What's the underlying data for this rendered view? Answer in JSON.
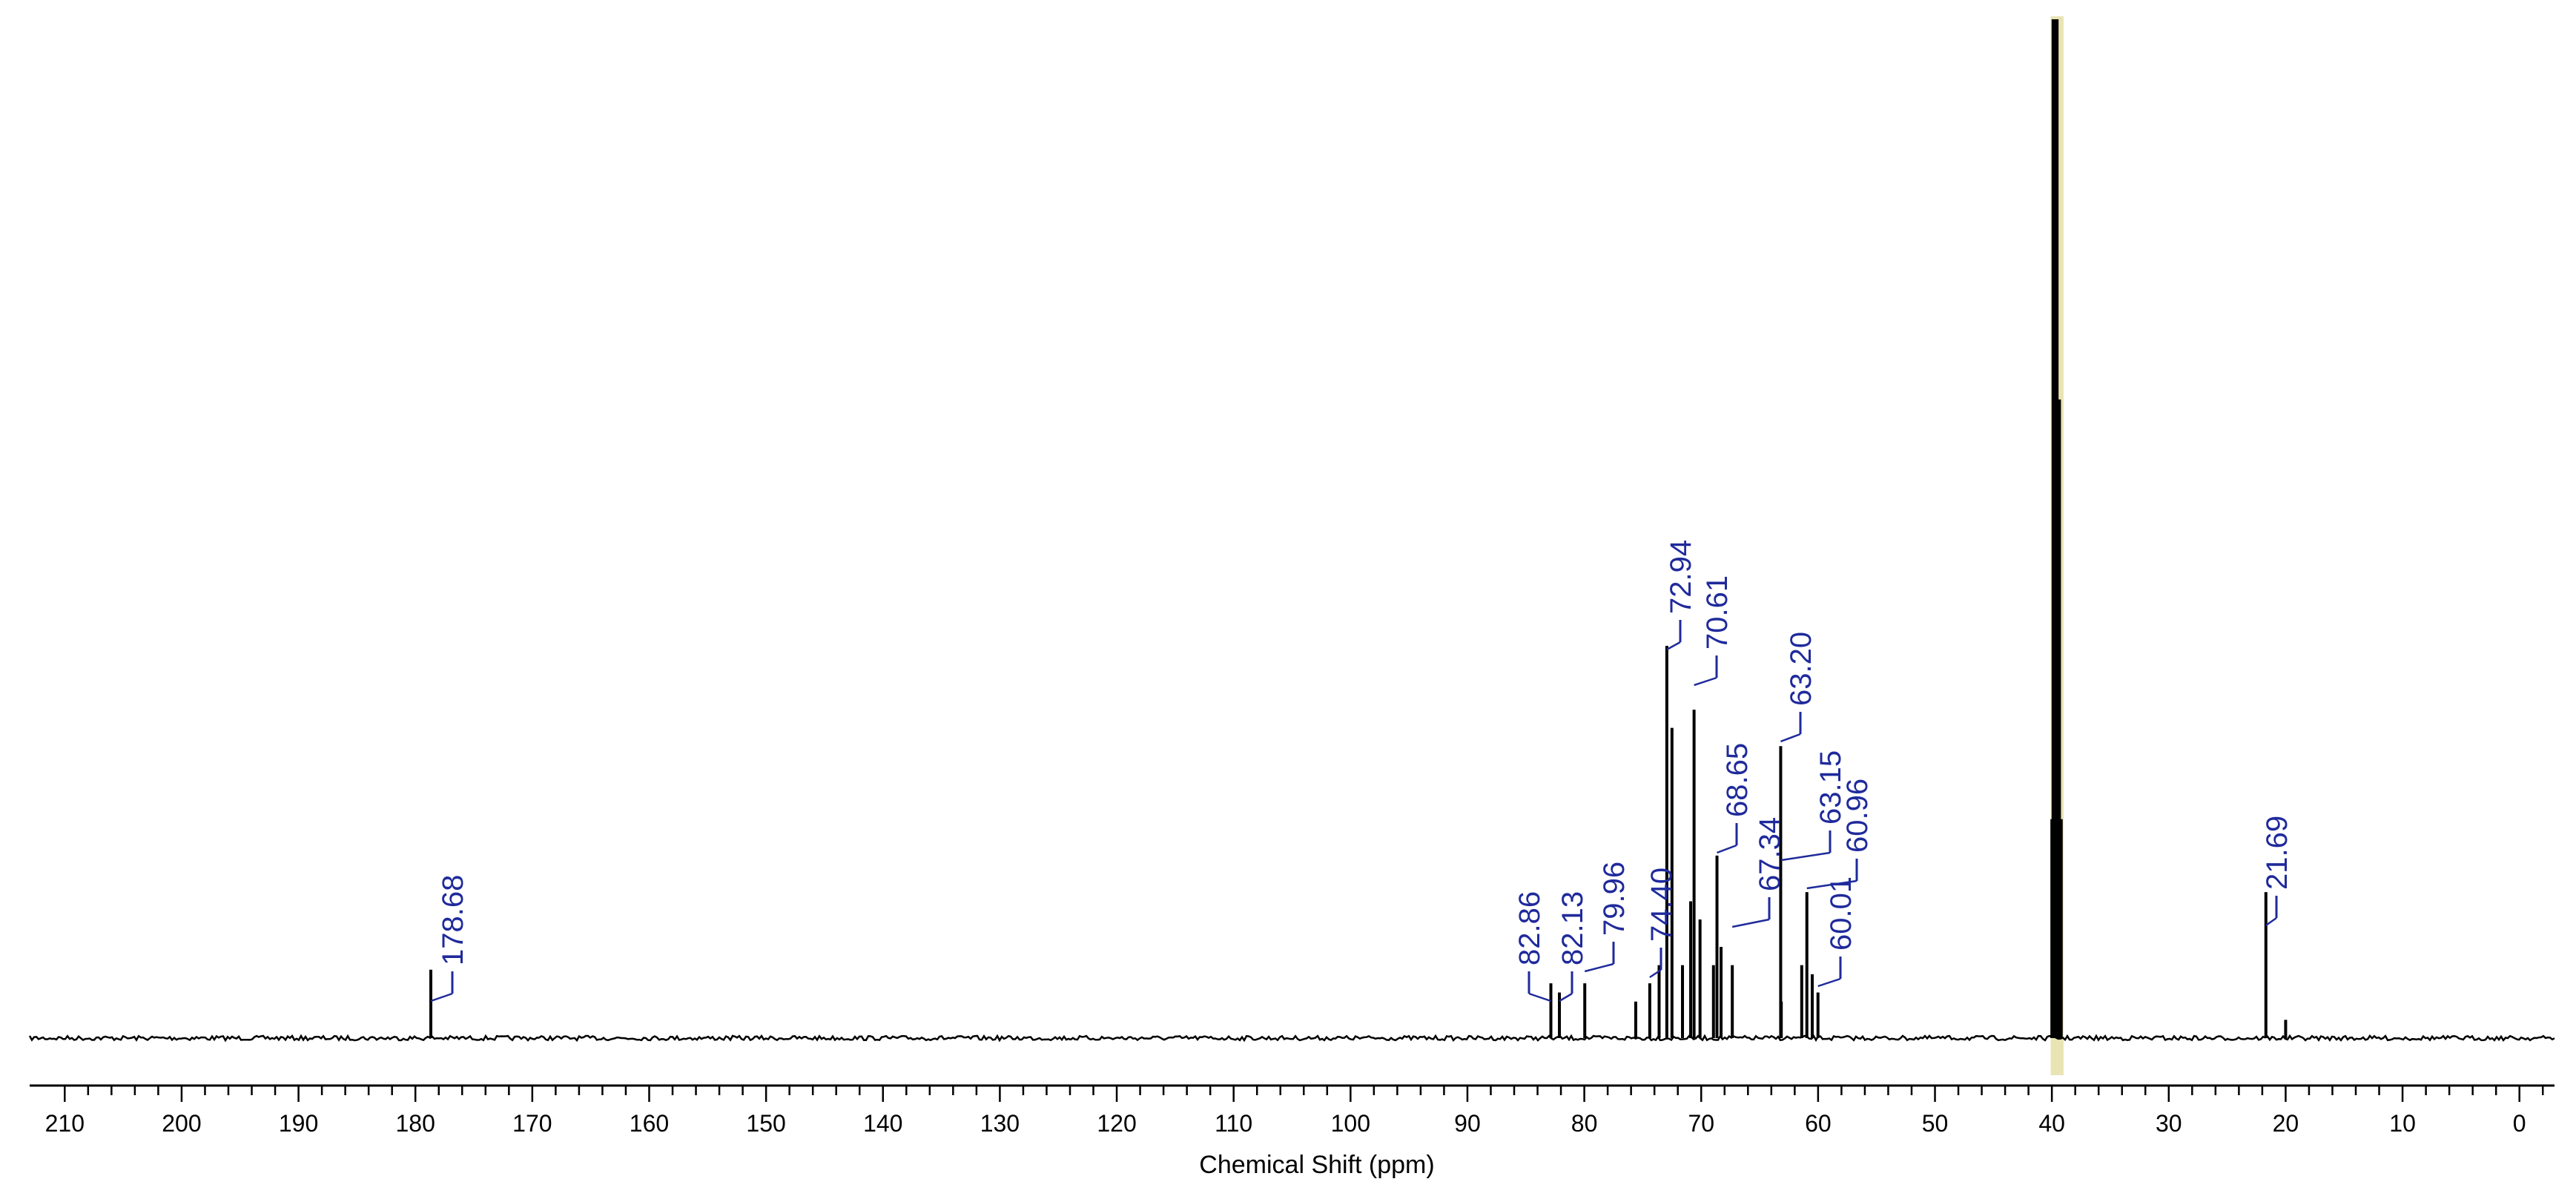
{
  "chart_data": {
    "type": "line",
    "xlabel": "Chemical Shift (ppm)",
    "ylabel": "",
    "title": "",
    "xlim": [
      213,
      -3
    ],
    "x_reversed": true,
    "xticks": [
      "210",
      "200",
      "190",
      "180",
      "170",
      "160",
      "150",
      "140",
      "130",
      "120",
      "110",
      "100",
      "90",
      "80",
      "70",
      "60",
      "50",
      "40",
      "30",
      "20",
      "10",
      "0"
    ],
    "grid": false,
    "colors": {
      "spectrum": "#000000",
      "peak_label": "#1f2a9b",
      "solvent_band": "#e9e4b4"
    },
    "solvent_band": {
      "from": 40.1,
      "to": 39.0
    },
    "peaks": [
      {
        "x": 178.68,
        "height": 0.075
      },
      {
        "x": 82.86,
        "height": 0.06
      },
      {
        "x": 82.13,
        "height": 0.05
      },
      {
        "x": 79.96,
        "height": 0.06
      },
      {
        "x": 75.6,
        "height": 0.04
      },
      {
        "x": 74.4,
        "height": 0.06
      },
      {
        "x": 73.6,
        "height": 0.08
      },
      {
        "x": 72.94,
        "height": 0.43
      },
      {
        "x": 72.5,
        "height": 0.34
      },
      {
        "x": 71.6,
        "height": 0.08
      },
      {
        "x": 70.9,
        "height": 0.15
      },
      {
        "x": 70.61,
        "height": 0.36
      },
      {
        "x": 70.1,
        "height": 0.13
      },
      {
        "x": 68.95,
        "height": 0.08
      },
      {
        "x": 68.65,
        "height": 0.2
      },
      {
        "x": 68.3,
        "height": 0.1
      },
      {
        "x": 67.34,
        "height": 0.08
      },
      {
        "x": 63.2,
        "height": 0.32
      },
      {
        "x": 63.15,
        "height": 0.04
      },
      {
        "x": 61.4,
        "height": 0.08
      },
      {
        "x": 60.96,
        "height": 0.16
      },
      {
        "x": 60.5,
        "height": 0.07
      },
      {
        "x": 60.01,
        "height": 0.05
      },
      {
        "x": 39.8,
        "height": 1.12
      },
      {
        "x": 39.65,
        "height": 1.12
      },
      {
        "x": 39.5,
        "height": 0.7
      },
      {
        "x": 39.35,
        "height": 0.7
      },
      {
        "x": 39.2,
        "height": 0.24
      },
      {
        "x": 40.0,
        "height": 0.24
      },
      {
        "x": 21.69,
        "height": 0.16
      },
      {
        "x": 20.0,
        "height": 0.02
      }
    ],
    "peak_labels": [
      "178.68",
      "82.86",
      "82.13",
      "79.96",
      "74.40",
      "72.94",
      "70.61",
      "68.65",
      "67.34",
      "63.20",
      "63.15",
      "60.96",
      "60.01",
      "21.69"
    ]
  }
}
